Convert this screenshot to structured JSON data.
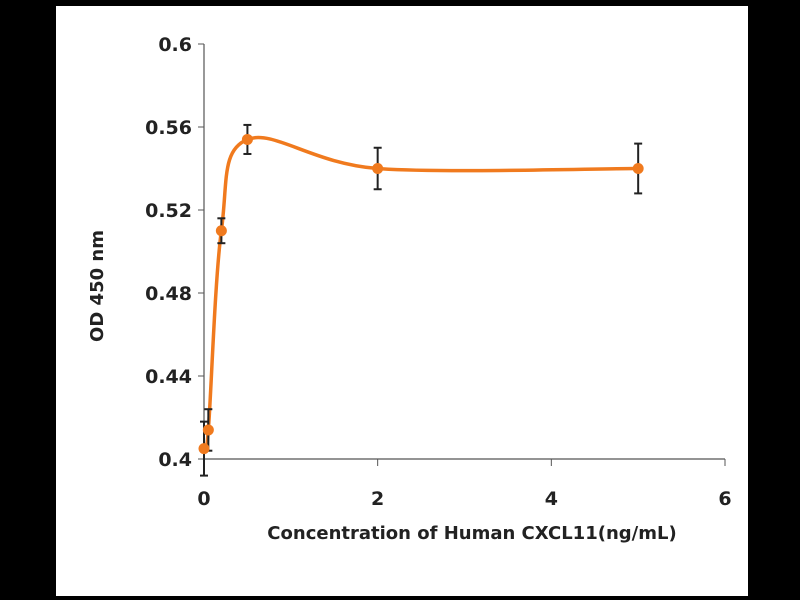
{
  "chart_data": {
    "type": "line",
    "title": "",
    "xlabel": "Concentration of Human CXCL11(ng/mL)",
    "ylabel": "OD 450 nm",
    "xlim": [
      0,
      6
    ],
    "ylim": [
      0.4,
      0.6
    ],
    "xticks": [
      "0",
      "2",
      "4",
      "6"
    ],
    "yticks": [
      "0.4",
      "0.44",
      "0.48",
      "0.52",
      "0.56",
      "0.6"
    ],
    "grid": false,
    "smooth": true,
    "series": [
      {
        "name": "CXCL11",
        "color": "#f07a1e",
        "x": [
          0,
          0.05,
          0.2,
          0.5,
          2,
          5
        ],
        "y": [
          0.405,
          0.414,
          0.51,
          0.554,
          0.54,
          0.54
        ],
        "error": [
          0.013,
          0.01,
          0.006,
          0.007,
          0.01,
          0.012
        ]
      }
    ]
  }
}
